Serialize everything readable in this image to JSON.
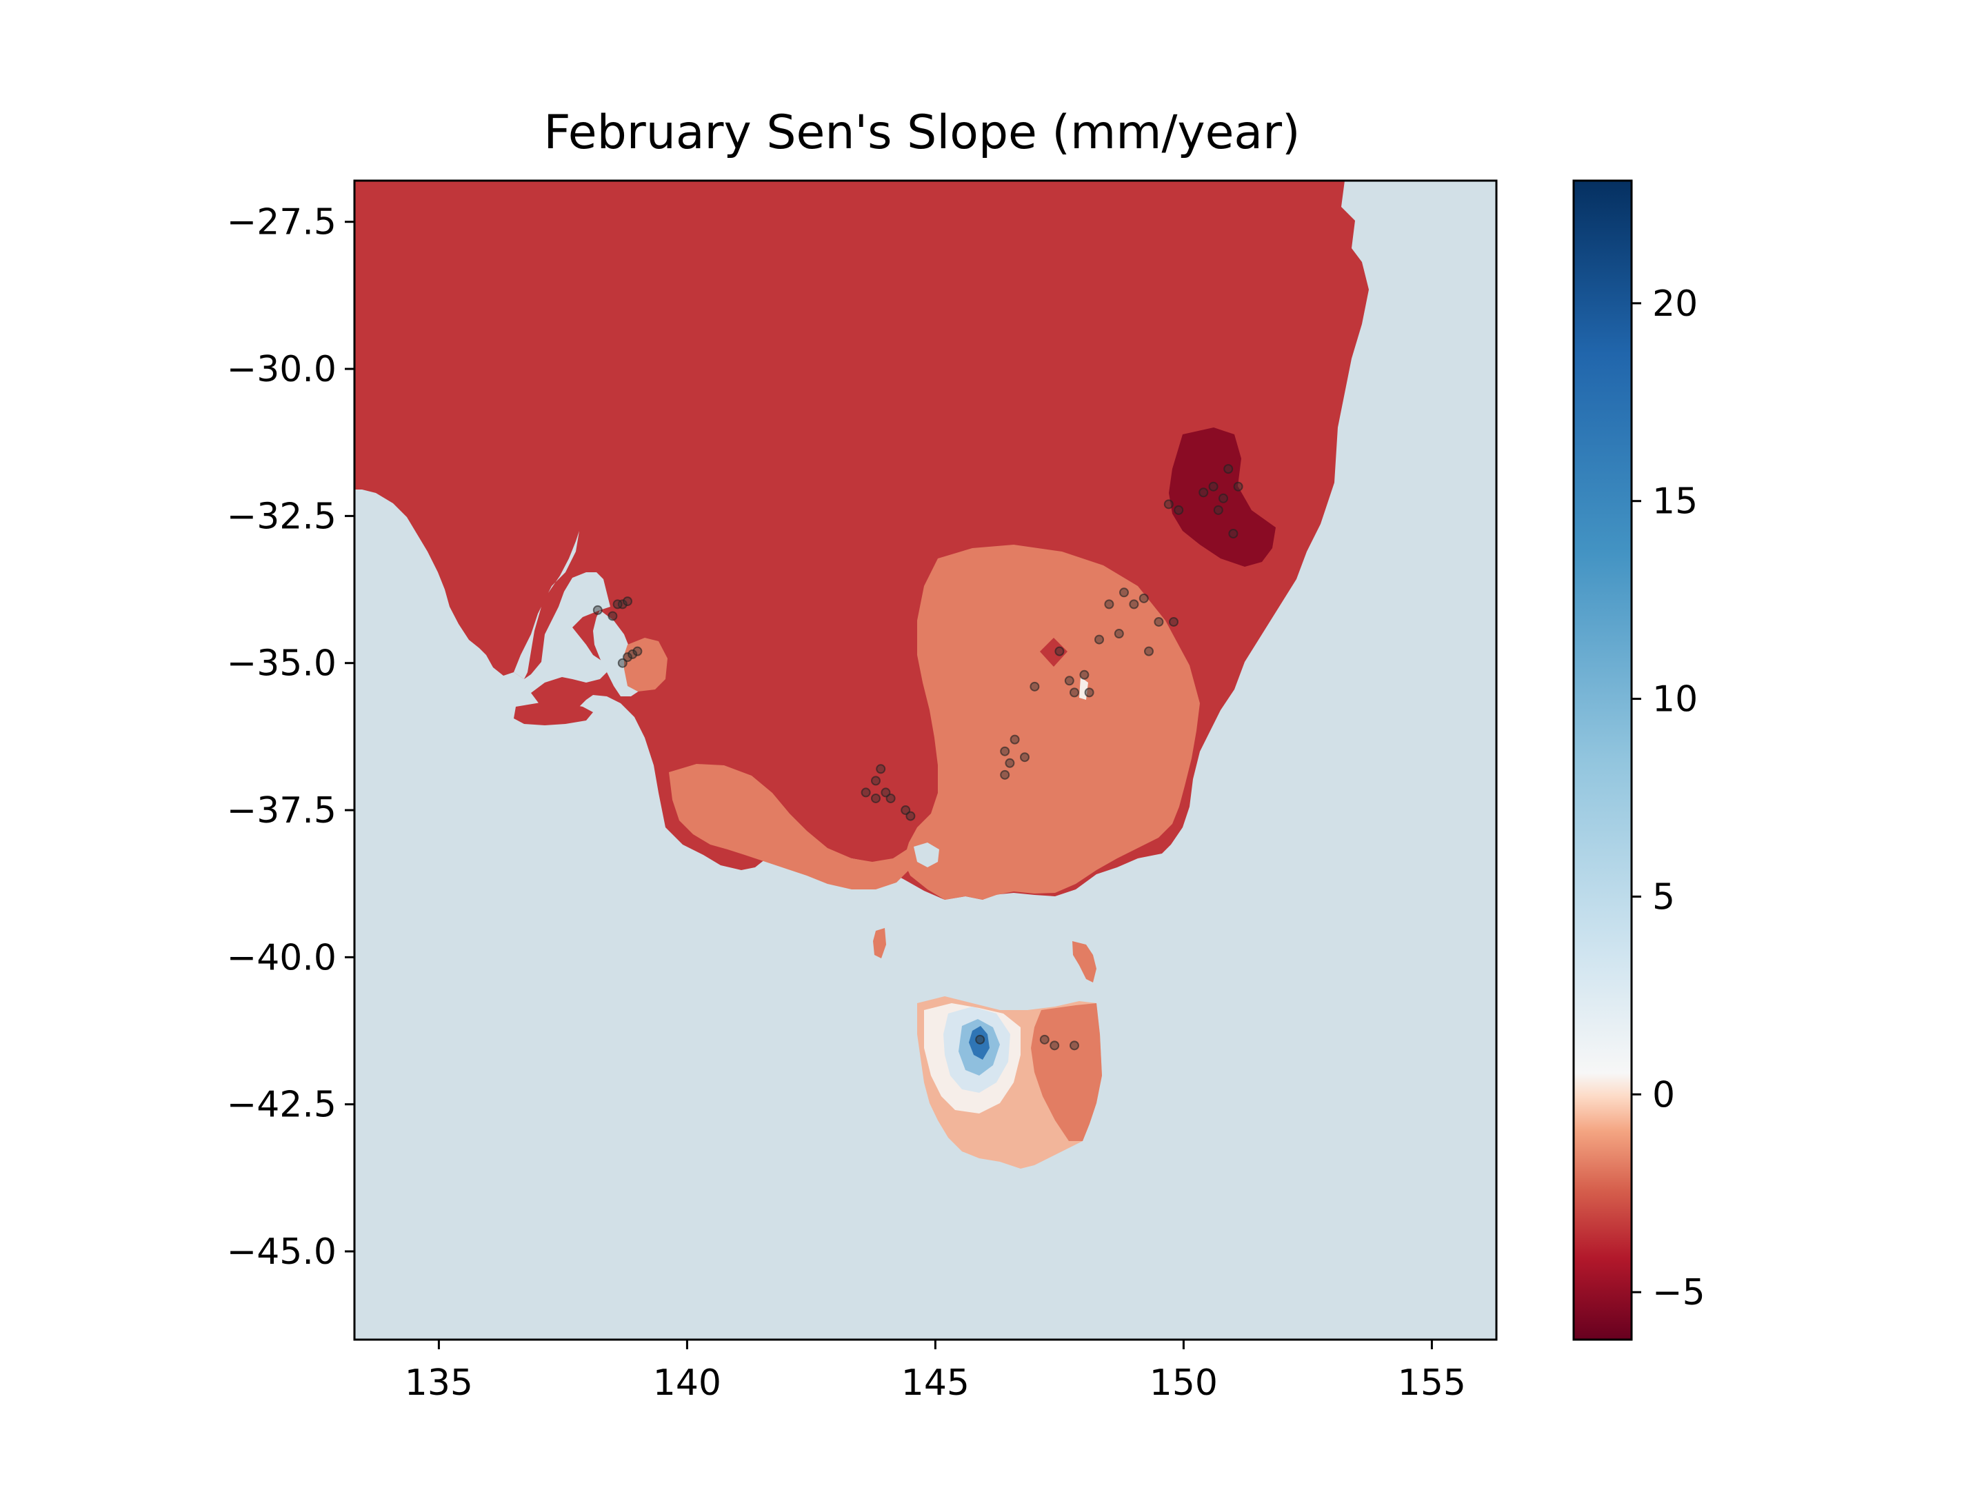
{
  "title": "February Sen's Slope (mm/year)",
  "colors": {
    "ocean": "#d2e0e7",
    "region_strong_decrease": "#c0363a",
    "region_very_strong_decrease": "#8a0b24",
    "region_moderate_decrease": "#e27d63",
    "region_mild_decrease": "#f2b59a",
    "region_neutral": "#f6eee9",
    "region_increase_light": "#d8e6f0",
    "region_increase_mid": "#8fbfde",
    "region_increase_strong": "#2f75b5",
    "station_marker": "#333333"
  },
  "chart_data": {
    "type": "heatmap",
    "title": "February Sen's Slope (mm/year)",
    "xlabel": "",
    "ylabel": "",
    "xlim": [
      133.3,
      156.3
    ],
    "ylim": [
      -46.5,
      -26.8
    ],
    "x_ticks": [
      135,
      140,
      145,
      150,
      155
    ],
    "x_tick_labels": [
      "135",
      "140",
      "145",
      "150",
      "155"
    ],
    "y_ticks": [
      -27.5,
      -30.0,
      -32.5,
      -35.0,
      -37.5,
      -40.0,
      -42.5,
      -45.0
    ],
    "y_tick_labels": [
      "−27.5",
      "−30.0",
      "−32.5",
      "−35.0",
      "−37.5",
      "−40.0",
      "−42.5",
      "−45.0"
    ],
    "colorbar": {
      "colormap": "RdBu",
      "range": [
        -6.2,
        23.1
      ],
      "ticks": [
        -5,
        0,
        5,
        10,
        15,
        20
      ],
      "tick_labels": [
        "−5",
        "0",
        "5",
        "10",
        "15",
        "20"
      ]
    },
    "regions": [
      {
        "level": "very_strong_decrease",
        "approx_value": -5.8,
        "center": [
          150.5,
          -32.3
        ]
      },
      {
        "level": "moderate_decrease",
        "approx_value": -3.5,
        "center": [
          147.5,
          -36.0
        ]
      },
      {
        "level": "moderate_decrease",
        "approx_value": -3.5,
        "center": [
          139.1,
          -35.0
        ]
      },
      {
        "level": "strong_decrease",
        "approx_value": -4.8,
        "center": [
          147.5,
          -34.8
        ]
      },
      {
        "level": "increase",
        "approx_value": 20,
        "center": [
          145.9,
          -41.4
        ]
      }
    ],
    "stations": [
      [
        138.2,
        -34.1
      ],
      [
        138.5,
        -34.2
      ],
      [
        138.7,
        -34.0
      ],
      [
        138.8,
        -33.95
      ],
      [
        138.6,
        -34.0
      ],
      [
        138.8,
        -34.9
      ],
      [
        138.9,
        -34.85
      ],
      [
        139.0,
        -34.8
      ],
      [
        138.7,
        -35.0
      ],
      [
        143.6,
        -37.2
      ],
      [
        143.8,
        -37.0
      ],
      [
        143.9,
        -36.8
      ],
      [
        143.8,
        -37.3
      ],
      [
        144.1,
        -37.3
      ],
      [
        144.4,
        -37.5
      ],
      [
        144.5,
        -37.6
      ],
      [
        144.0,
        -37.2
      ],
      [
        146.4,
        -36.5
      ],
      [
        146.6,
        -36.3
      ],
      [
        146.8,
        -36.6
      ],
      [
        146.5,
        -36.7
      ],
      [
        146.4,
        -36.9
      ],
      [
        147.0,
        -35.4
      ],
      [
        147.5,
        -34.8
      ],
      [
        147.7,
        -35.3
      ],
      [
        148.0,
        -35.2
      ],
      [
        148.1,
        -35.5
      ],
      [
        147.8,
        -35.5
      ],
      [
        148.3,
        -34.6
      ],
      [
        148.5,
        -34.0
      ],
      [
        148.8,
        -33.8
      ],
      [
        149.0,
        -34.0
      ],
      [
        149.2,
        -33.9
      ],
      [
        149.5,
        -34.3
      ],
      [
        148.7,
        -34.5
      ],
      [
        149.3,
        -34.8
      ],
      [
        149.8,
        -34.3
      ],
      [
        149.7,
        -32.3
      ],
      [
        149.9,
        -32.4
      ],
      [
        150.4,
        -32.1
      ],
      [
        150.6,
        -32.0
      ],
      [
        150.8,
        -32.2
      ],
      [
        150.9,
        -31.7
      ],
      [
        151.1,
        -32.0
      ],
      [
        150.7,
        -32.4
      ],
      [
        151.0,
        -32.8
      ],
      [
        145.9,
        -41.4
      ],
      [
        147.2,
        -41.4
      ],
      [
        147.4,
        -41.5
      ],
      [
        147.8,
        -41.5
      ]
    ]
  }
}
